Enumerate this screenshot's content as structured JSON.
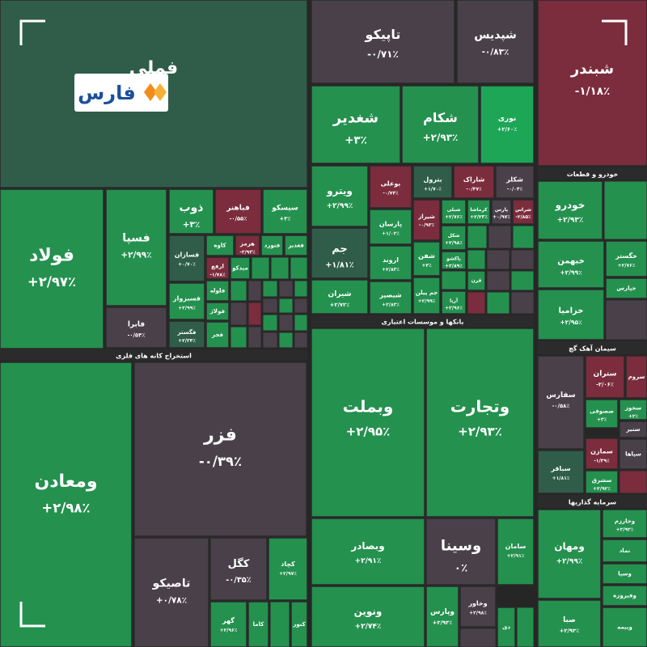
{
  "logo": "فارس",
  "sections": [
    "استخراج کانه های فلزی",
    "بانکها و موسسات اعتباری",
    "خودرو و قطعات",
    "سیمان آهک گچ",
    "سرمایه گذاریها"
  ],
  "tiles": [
    {
      "name": "فملی"
    },
    {
      "name": "فولاد",
      "change": "+۲/۹۷٪"
    },
    {
      "name": "فسپا",
      "change": "+۲/۹۹٪"
    },
    {
      "name": "فابرا",
      "change": "-۰/۵۴٪"
    },
    {
      "name": "ذوب",
      "change": "+۳٪"
    },
    {
      "name": "فباهنر",
      "change": "-۰/۵۵٪"
    },
    {
      "name": "سیسکو",
      "change": "+۳٪"
    },
    {
      "name": "فسازان",
      "change": "+۰/۷۰٪"
    },
    {
      "name": "کاوه"
    },
    {
      "name": "هرمز",
      "change": "-۲/۹۳٪"
    },
    {
      "name": "فنورد"
    },
    {
      "name": "فغدیر"
    },
    {
      "name": "فسبزوار",
      "change": "+۲/۹۹٪"
    },
    {
      "name": "فگستر",
      "change": "+۲/۳۴٪"
    },
    {
      "name": "ارفع",
      "change": "-۱/۷۸٪"
    },
    {
      "name": "میدکو"
    },
    {
      "name": "فلوله"
    },
    {
      "name": "فولاژ"
    },
    {
      "name": "فجر"
    },
    {
      "name": "ومعادن",
      "change": "+۲/۹۸٪"
    },
    {
      "name": "فزر",
      "change": "-۰/۳۹٪"
    },
    {
      "name": "تاصیکو",
      "change": "+۰/۷۸٪"
    },
    {
      "name": "کگل",
      "change": "-۰/۳۵٪"
    },
    {
      "name": "کچاد",
      "change": "+۲/۹۷٪"
    },
    {
      "name": "گهر",
      "change": "+۲/۹۶٪"
    },
    {
      "name": "کاما"
    },
    {
      "name": "کنور"
    },
    {
      "name": "تاپیکو",
      "change": "-۰/۷۱٪"
    },
    {
      "name": "شپدیس",
      "change": "-۰/۸۳٪"
    },
    {
      "name": "شغدیر",
      "change": "+۳٪"
    },
    {
      "name": "شکام",
      "change": "+۲/۹۳٪"
    },
    {
      "name": "نوری",
      "change": "+۲/۶۰٪"
    },
    {
      "name": "ویترو",
      "change": "+۲/۹۹٪"
    },
    {
      "name": "بوعلی",
      "change": "-۰/۷۴٪"
    },
    {
      "name": "بترول",
      "change": "+۱/۷۰٪"
    },
    {
      "name": "شاراک",
      "change": "-۰/۴۷٪"
    },
    {
      "name": "شکلر",
      "change": "-۰/۰۴٪"
    },
    {
      "name": "جم",
      "change": "+۱/۸۱٪"
    },
    {
      "name": "شیران",
      "change": "+۲/۷۲٪"
    },
    {
      "name": "پارسان",
      "change": "+۱/۰۲٪"
    },
    {
      "name": "شیراز",
      "change": "-۰/۹۳٪"
    },
    {
      "name": "شبلی",
      "change": "+۲/۷۶٪"
    },
    {
      "name": "کرماشا",
      "change": "+۲/۲۳٪"
    },
    {
      "name": "پارس",
      "change": "+۰/۹۷٪"
    },
    {
      "name": "شراس",
      "change": "-۲/۸۵٪"
    },
    {
      "name": "اروند",
      "change": "+۲/۸۳٪"
    },
    {
      "name": "شفن",
      "change": "+۳٪"
    },
    {
      "name": "شکل",
      "change": "+۲/۹۸٪"
    },
    {
      "name": "پاکشو",
      "change": "+۲/۸۹٪"
    },
    {
      "name": "شبصیر",
      "change": "+۲/۸۳٪"
    },
    {
      "name": "جم پیلن",
      "change": "+۲/۹۹٪"
    },
    {
      "name": "آریا",
      "change": "+۲/۹۶٪"
    },
    {
      "name": "قرن"
    },
    {
      "name": "وبملت",
      "change": "+۲/۹۵٪"
    },
    {
      "name": "وتجارت",
      "change": "+۲/۹۳٪"
    },
    {
      "name": "وبصادر",
      "change": "+۲/۹۱٪"
    },
    {
      "name": "وسینا",
      "change": "۰٪"
    },
    {
      "name": "سامان",
      "change": "+۲/۹۱٪"
    },
    {
      "name": "ونوین",
      "change": "+۲/۷۴٪"
    },
    {
      "name": "وپارس",
      "change": "+۲/۹۳٪"
    },
    {
      "name": "وخاور",
      "change": "+۲/۹۸٪"
    },
    {
      "name": "دی"
    },
    {
      "name": "شبندر",
      "change": "-۱/۱۸٪"
    },
    {
      "name": "خودرو",
      "change": "+۲/۹۳٪"
    },
    {
      "name": "خبهمن",
      "change": "+۲/۹۹٪"
    },
    {
      "name": "خگستر",
      "change": "+۲/۷۶٪"
    },
    {
      "name": "خپارس"
    },
    {
      "name": "خزامیا",
      "change": "+۲/۹۵٪"
    },
    {
      "name": "سفارس",
      "change": "-۰/۵۸٪"
    },
    {
      "name": "ستران",
      "change": "-۲/۰۶٪"
    },
    {
      "name": "سروم"
    },
    {
      "name": "صصوفی",
      "change": "+۳٪"
    },
    {
      "name": "سخوز",
      "change": "+۲٪"
    },
    {
      "name": "سنیر"
    },
    {
      "name": "سمازن",
      "change": "-۱/۳۹٪"
    },
    {
      "name": "سپاها"
    },
    {
      "name": "سباقر",
      "change": "+۱/۸۱٪"
    },
    {
      "name": "سشرق",
      "change": "+۲/۹۲٪"
    },
    {
      "name": "ومهان",
      "change": "+۲/۹۹٪"
    },
    {
      "name": "وخارزم",
      "change": "+۲/۹۲٪"
    },
    {
      "name": "نماد"
    },
    {
      "name": "وسپا"
    },
    {
      "name": "وفیروزه"
    },
    {
      "name": "وبیمه"
    },
    {
      "name": "صبا",
      "change": "+۲/۹۳٪"
    }
  ]
}
